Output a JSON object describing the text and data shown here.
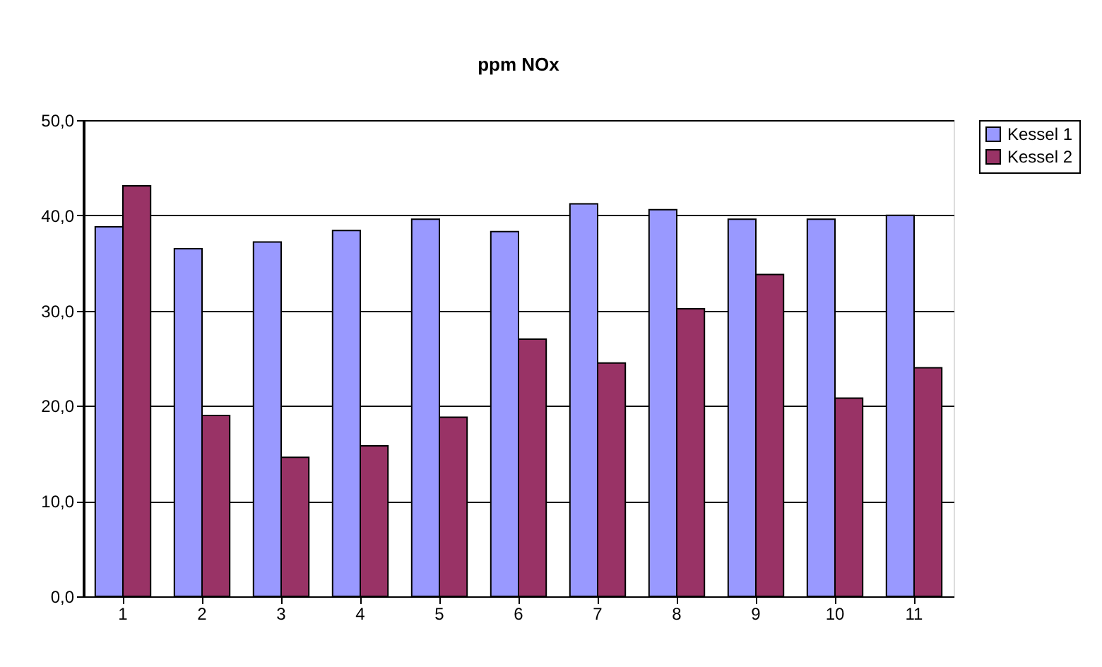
{
  "chart_data": {
    "type": "bar",
    "title": "ppm NOx",
    "categories": [
      "1",
      "2",
      "3",
      "4",
      "5",
      "6",
      "7",
      "8",
      "9",
      "10",
      "11"
    ],
    "series": [
      {
        "name": "Kessel 1",
        "color": "#9999ff",
        "values": [
          38.8,
          36.5,
          37.2,
          38.4,
          39.6,
          38.3,
          41.2,
          40.6,
          39.6,
          39.6,
          40.0
        ]
      },
      {
        "name": "Kessel 2",
        "color": "#993366",
        "values": [
          43.1,
          19.0,
          14.6,
          15.8,
          18.8,
          27.0,
          24.5,
          30.2,
          33.8,
          20.8,
          24.0
        ]
      }
    ],
    "ylim": [
      0,
      50
    ],
    "yticks": [
      {
        "value": 0,
        "label": "0,0"
      },
      {
        "value": 10,
        "label": "10,0"
      },
      {
        "value": 20,
        "label": "20,0"
      },
      {
        "value": 30,
        "label": "30,0"
      },
      {
        "value": 40,
        "label": "40,0"
      },
      {
        "value": 50,
        "label": "50,0"
      }
    ],
    "grid": "y",
    "legend": "right"
  }
}
